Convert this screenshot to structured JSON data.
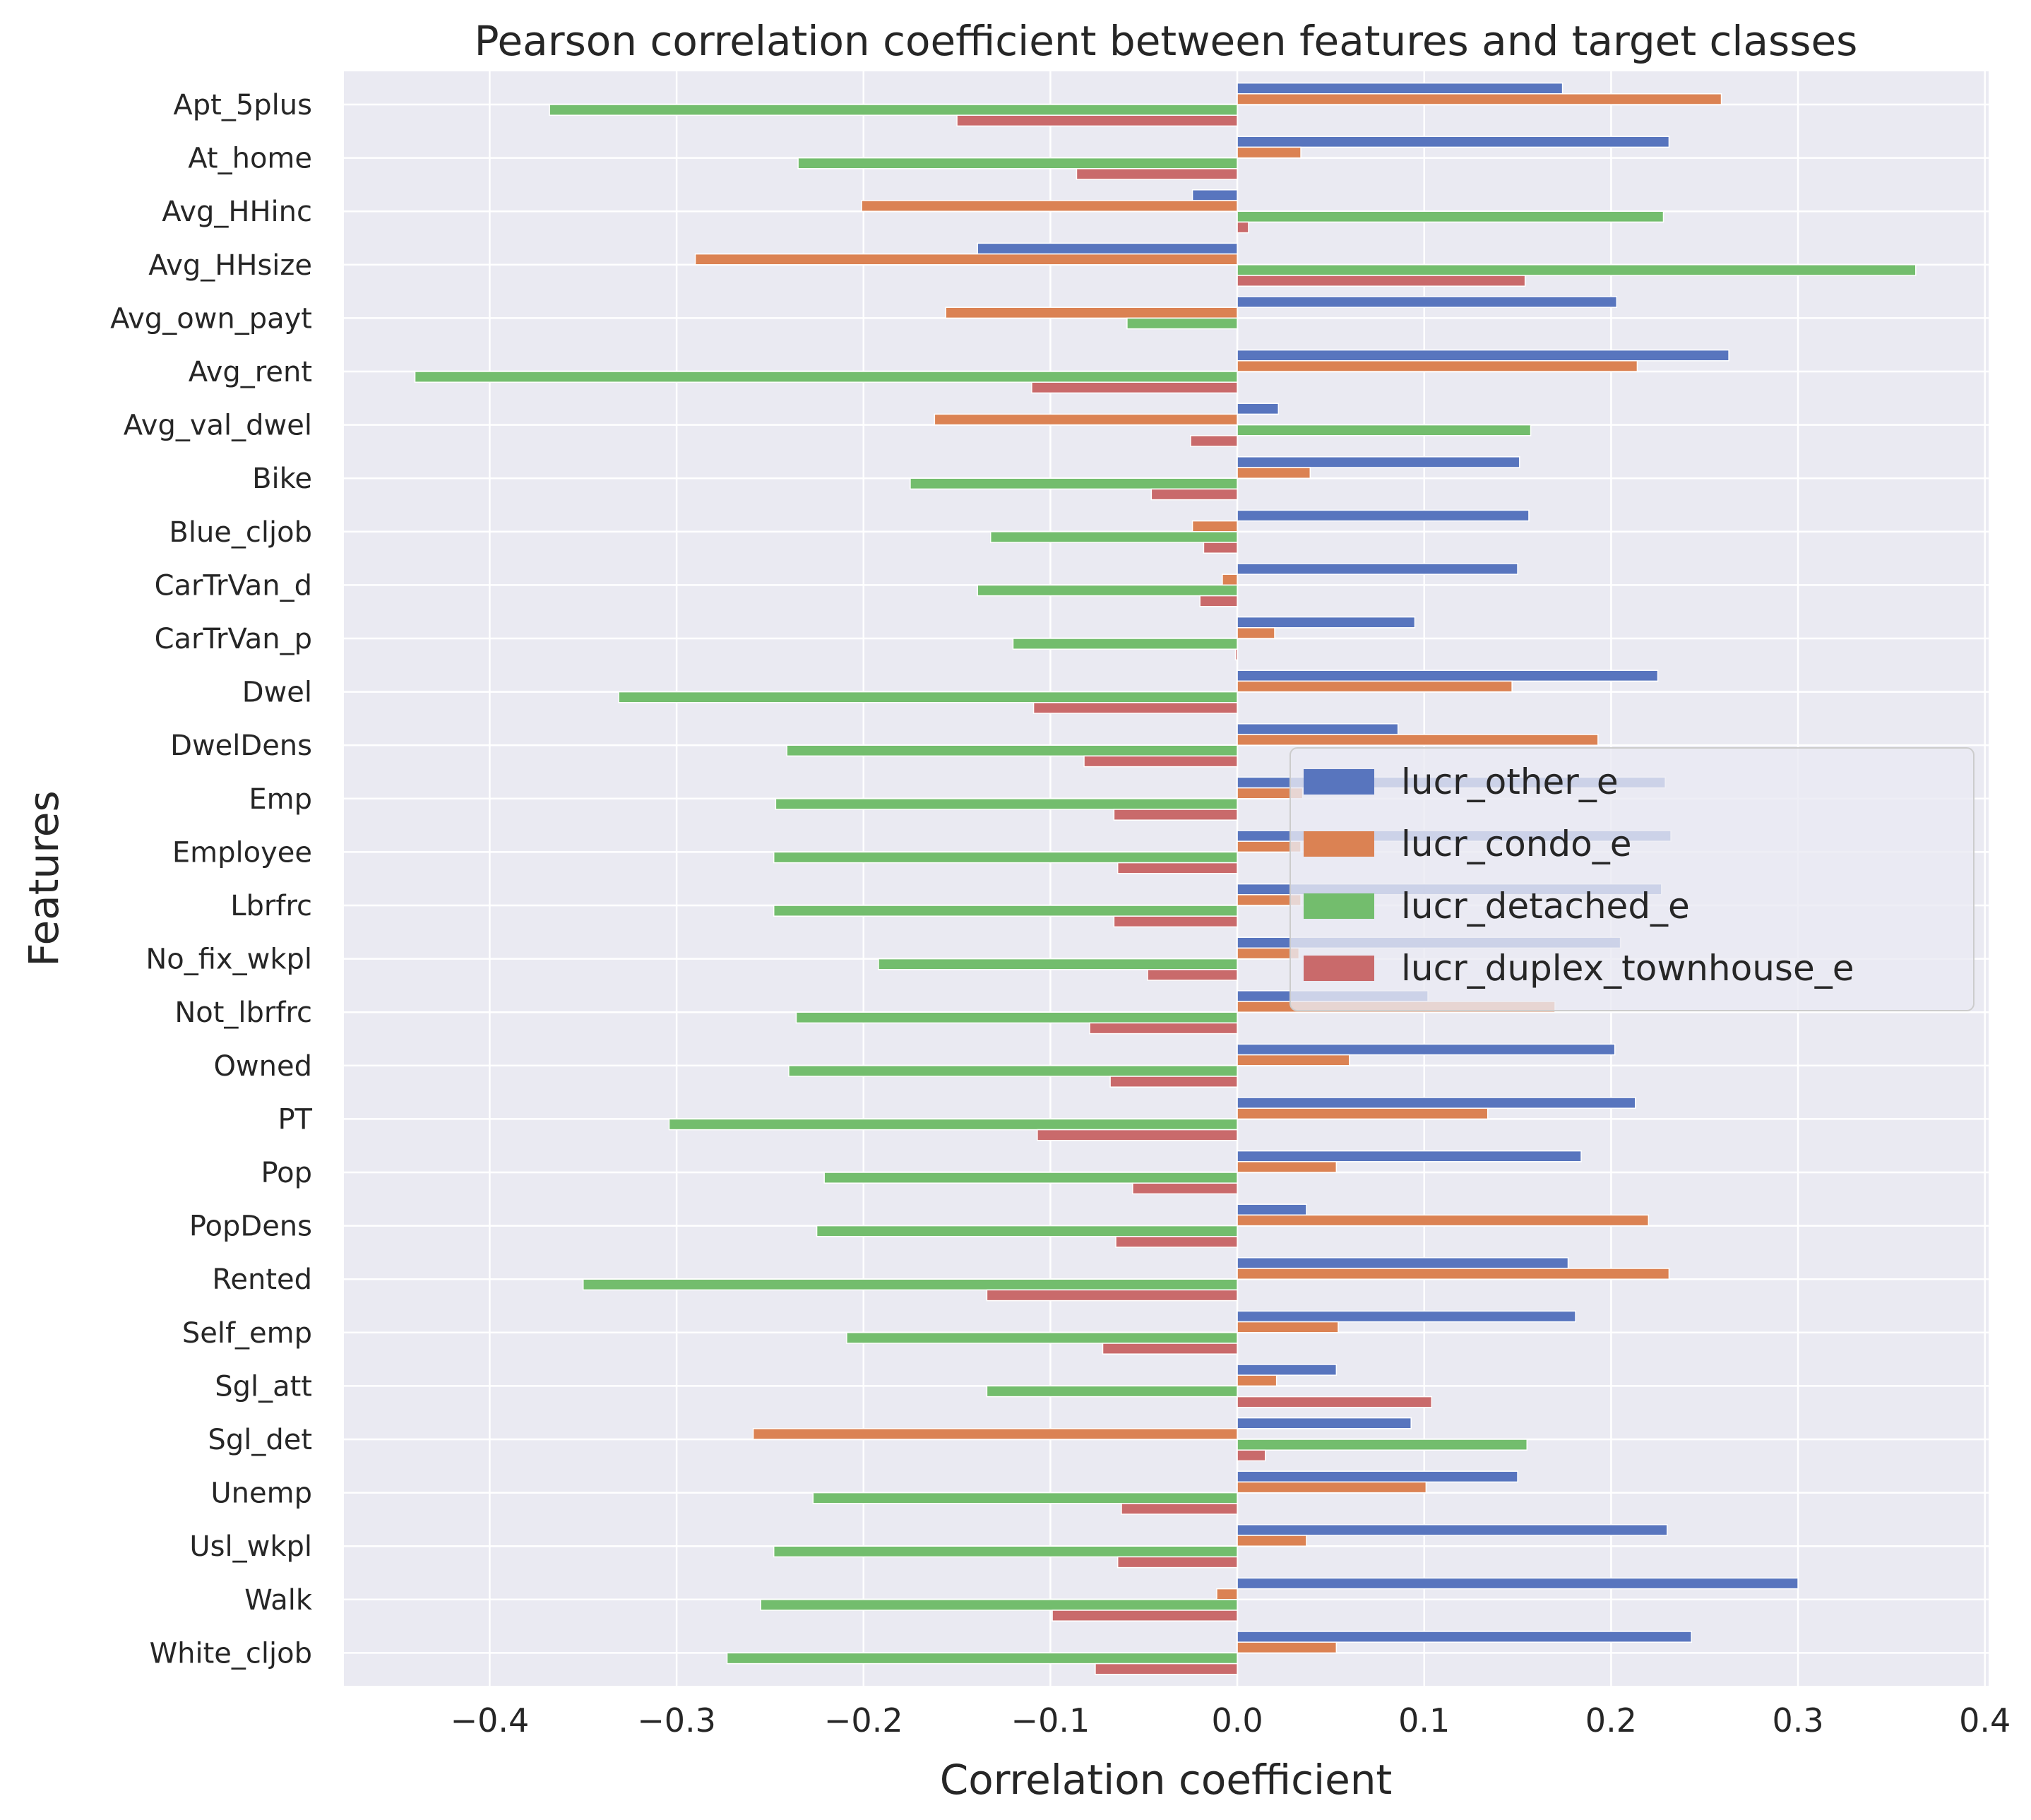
{
  "chart_data": {
    "type": "bar",
    "orientation": "horizontal",
    "title": "Pearson correlation coefficient between features and target classes",
    "xlabel": "Correlation coefficient",
    "ylabel": "Features",
    "xlim": [
      -0.478,
      0.402
    ],
    "xticks": [
      -0.4,
      -0.3,
      -0.2,
      -0.1,
      0.0,
      0.1,
      0.2,
      0.3,
      0.4
    ],
    "xtick_labels": [
      "−0.4",
      "−0.3",
      "−0.2",
      "−0.1",
      "0.0",
      "0.1",
      "0.2",
      "0.3",
      "0.4"
    ],
    "grid": true,
    "legend_position": "center-right",
    "categories": [
      "Apt_5plus",
      "At_home",
      "Avg_HHinc",
      "Avg_HHsize",
      "Avg_own_payt",
      "Avg_rent",
      "Avg_val_dwel",
      "Bike",
      "Blue_cljob",
      "CarTrVan_d",
      "CarTrVan_p",
      "Dwel",
      "DwelDens",
      "Emp",
      "Employee",
      "Lbrfrc",
      "No_fix_wkpl",
      "Not_lbrfrc",
      "Owned",
      "PT",
      "Pop",
      "PopDens",
      "Rented",
      "Self_emp",
      "Sgl_att",
      "Sgl_det",
      "Unemp",
      "Usl_wkpl",
      "Walk",
      "White_cljob"
    ],
    "series": [
      {
        "name": "lucr_other_e",
        "color": "#5875be",
        "values": [
          0.174,
          0.231,
          -0.024,
          -0.139,
          0.203,
          0.263,
          0.022,
          0.151,
          0.156,
          0.15,
          0.095,
          0.225,
          0.086,
          0.229,
          0.232,
          0.227,
          0.205,
          0.102,
          0.202,
          0.213,
          0.184,
          0.037,
          0.177,
          0.181,
          0.053,
          0.093,
          0.15,
          0.23,
          0.3,
          0.243
        ]
      },
      {
        "name": "lucr_condo_e",
        "color": "#db8253",
        "values": [
          0.259,
          0.034,
          -0.201,
          -0.29,
          -0.156,
          0.214,
          -0.162,
          0.039,
          -0.024,
          -0.008,
          0.02,
          0.147,
          0.193,
          0.035,
          0.034,
          0.034,
          0.033,
          0.17,
          0.06,
          0.134,
          0.053,
          0.22,
          0.231,
          0.054,
          0.021,
          -0.259,
          0.101,
          0.037,
          -0.011,
          0.053
        ]
      },
      {
        "name": "lucr_detached_e",
        "color": "#73bd6d",
        "values": [
          -0.368,
          -0.235,
          0.228,
          0.363,
          -0.059,
          -0.44,
          0.157,
          -0.175,
          -0.132,
          -0.139,
          -0.12,
          -0.331,
          -0.241,
          -0.247,
          -0.248,
          -0.248,
          -0.192,
          -0.236,
          -0.24,
          -0.304,
          -0.221,
          -0.225,
          -0.35,
          -0.209,
          -0.134,
          0.155,
          -0.227,
          -0.248,
          -0.255,
          -0.273
        ]
      },
      {
        "name": "lucr_duplex_townhouse_e",
        "color": "#c96a6b",
        "values": [
          -0.15,
          -0.086,
          0.006,
          0.154,
          0.0,
          -0.11,
          -0.025,
          -0.046,
          -0.018,
          -0.02,
          -0.001,
          -0.109,
          -0.082,
          -0.066,
          -0.064,
          -0.066,
          -0.048,
          -0.079,
          -0.068,
          -0.107,
          -0.056,
          -0.065,
          -0.134,
          -0.072,
          0.104,
          0.015,
          -0.062,
          -0.064,
          -0.099,
          -0.076
        ]
      }
    ]
  }
}
